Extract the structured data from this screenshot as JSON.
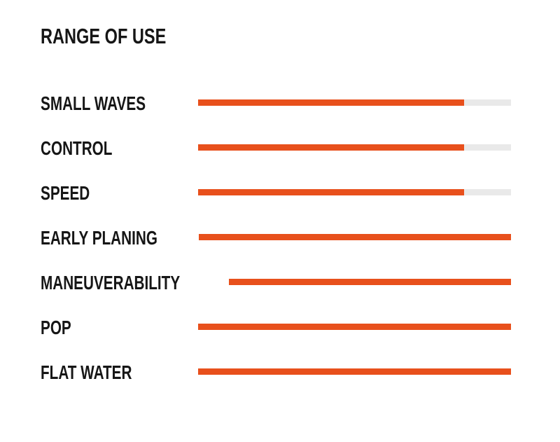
{
  "page": {
    "title": "RANGE OF USE"
  },
  "chart_data": {
    "type": "bar",
    "orientation": "horizontal",
    "title": "RANGE OF USE",
    "categories": [
      "SMALL WAVES",
      "CONTROL",
      "SPEED",
      "EARLY PLANING",
      "MANEUVERABILITY",
      "POP",
      "FLAT WATER"
    ],
    "values": [
      85,
      85,
      85,
      100,
      100,
      100,
      100
    ],
    "value_scale": {
      "min": 0,
      "max": 100,
      "unit": "percent"
    },
    "legend": "none",
    "grid": false,
    "colors": {
      "bar_fill": "#E8501C",
      "bar_track": "#E9E9E9",
      "text": "#161616",
      "background": "#FFFFFF"
    }
  }
}
